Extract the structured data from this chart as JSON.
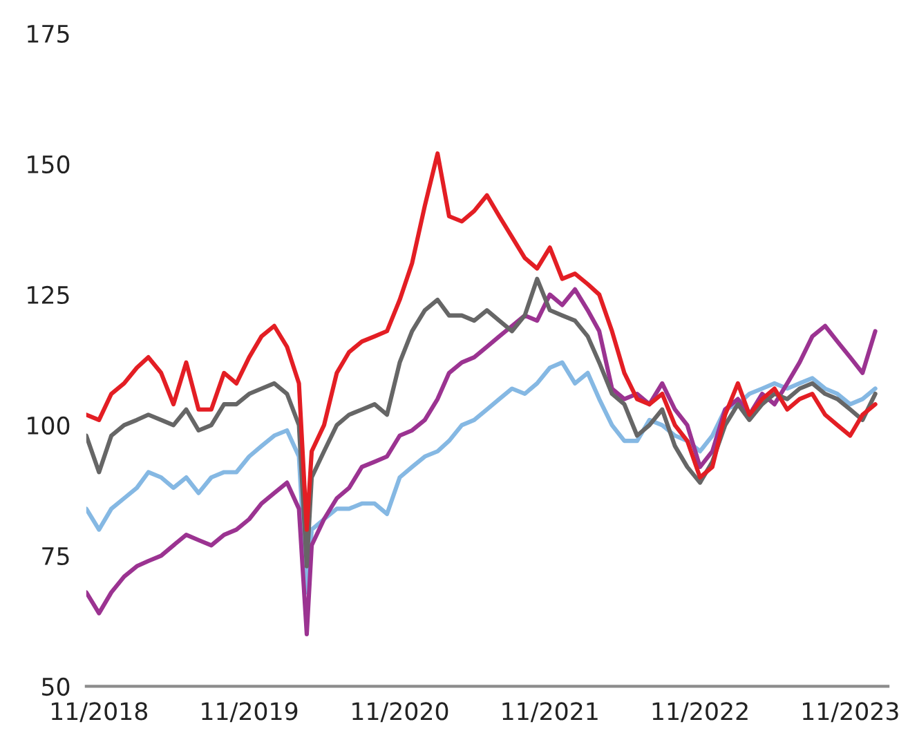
{
  "chart_data": {
    "type": "line",
    "x": [
      "2018-10",
      "2018-11",
      "2018-12",
      "2019-01",
      "2019-02",
      "2019-03",
      "2019-04",
      "2019-05",
      "2019-06",
      "2019-07",
      "2019-08",
      "2019-09",
      "2019-10",
      "2019-11",
      "2019-12",
      "2020-01",
      "2020-02",
      "2020-03-01",
      "2020-03-20",
      "2020-04",
      "2020-05",
      "2020-06",
      "2020-07",
      "2020-08",
      "2020-09",
      "2020-10",
      "2020-11",
      "2020-12",
      "2021-01",
      "2021-02",
      "2021-03",
      "2021-04",
      "2021-05",
      "2021-06",
      "2021-07",
      "2021-08",
      "2021-09",
      "2021-10",
      "2021-11",
      "2021-12",
      "2022-01",
      "2022-02",
      "2022-03",
      "2022-04",
      "2022-05",
      "2022-06",
      "2022-07",
      "2022-08",
      "2022-09",
      "2022-10",
      "2022-11",
      "2022-12",
      "2023-01",
      "2023-02",
      "2023-03",
      "2023-04",
      "2023-05",
      "2023-06",
      "2023-07",
      "2023-08",
      "2023-09",
      "2023-10",
      "2023-11",
      "2023-12",
      "2024-01"
    ],
    "series": [
      {
        "color": "#85b8e3",
        "values": [
          84,
          80,
          84,
          86,
          88,
          91,
          90,
          88,
          90,
          87,
          90,
          91,
          91,
          94,
          96,
          98,
          99,
          94,
          68,
          80,
          82,
          84,
          84,
          85,
          85,
          83,
          90,
          92,
          94,
          95,
          97,
          100,
          101,
          103,
          105,
          107,
          106,
          108,
          111,
          112,
          108,
          110,
          105,
          100,
          97,
          97,
          101,
          100,
          98,
          97,
          95,
          98,
          103,
          104,
          106,
          107,
          108,
          107,
          108,
          109,
          107,
          106,
          104,
          105,
          107
        ]
      },
      {
        "color": "#9b3391",
        "values": [
          68,
          64,
          68,
          71,
          73,
          74,
          75,
          77,
          79,
          78,
          77,
          79,
          80,
          82,
          85,
          87,
          89,
          84,
          60,
          77,
          82,
          86,
          88,
          92,
          93,
          94,
          98,
          99,
          101,
          105,
          110,
          112,
          113,
          115,
          117,
          119,
          121,
          120,
          125,
          123,
          126,
          122,
          118,
          107,
          105,
          106,
          104,
          108,
          103,
          100,
          92,
          95,
          103,
          105,
          102,
          106,
          104,
          108,
          112,
          117,
          119,
          116,
          113,
          110,
          118
        ]
      },
      {
        "color": "#666666",
        "values": [
          98,
          91,
          98,
          100,
          101,
          102,
          101,
          100,
          103,
          99,
          100,
          104,
          104,
          106,
          107,
          108,
          106,
          100,
          73,
          90,
          95,
          100,
          102,
          103,
          104,
          102,
          112,
          118,
          122,
          124,
          121,
          121,
          120,
          122,
          120,
          118,
          121,
          128,
          122,
          121,
          120,
          117,
          112,
          106,
          104,
          98,
          100,
          103,
          96,
          92,
          89,
          93,
          100,
          104,
          101,
          104,
          106,
          105,
          107,
          108,
          106,
          105,
          103,
          101,
          106
        ]
      },
      {
        "color": "#e31e24",
        "values": [
          102,
          101,
          106,
          108,
          111,
          113,
          110,
          104,
          112,
          103,
          103,
          110,
          108,
          113,
          117,
          119,
          115,
          108,
          80,
          95,
          100,
          110,
          114,
          116,
          117,
          118,
          124,
          131,
          142,
          152,
          140,
          139,
          141,
          144,
          140,
          136,
          132,
          130,
          134,
          128,
          129,
          127,
          125,
          118,
          110,
          105,
          104,
          106,
          100,
          97,
          90,
          92,
          102,
          108,
          102,
          105,
          107,
          103,
          105,
          106,
          102,
          100,
          98,
          102,
          104
        ]
      }
    ],
    "xlim": [
      "2018-10-01",
      "2024-02-01"
    ],
    "xticks": [
      {
        "value": "2018-11-01",
        "label": "11/2018"
      },
      {
        "value": "2019-11-01",
        "label": "11/2019"
      },
      {
        "value": "2020-11-01",
        "label": "11/2020"
      },
      {
        "value": "2021-11-01",
        "label": "11/2021"
      },
      {
        "value": "2022-11-01",
        "label": "11/2022"
      },
      {
        "value": "2023-11-01",
        "label": "11/2023"
      }
    ],
    "ylim": [
      50,
      175
    ],
    "yticks": [
      50,
      75,
      100,
      125,
      150,
      175
    ],
    "line_style": "solid",
    "marker": "none"
  }
}
